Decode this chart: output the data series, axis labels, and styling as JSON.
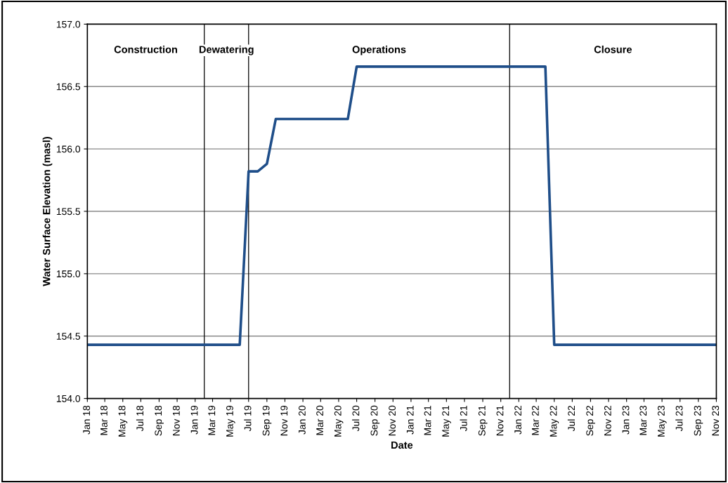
{
  "chart_data": {
    "type": "line",
    "xlabel": "Date",
    "ylabel": "Water Surface Elevation (masl)",
    "x": [
      "2018-01",
      "2019-06",
      "2019-07",
      "2019-08",
      "2019-09",
      "2019-10",
      "2020-06",
      "2020-07",
      "2022-04",
      "2022-05",
      "2023-11"
    ],
    "series": [
      {
        "color": "#1f4e89",
        "values": [
          154.43,
          154.43,
          155.82,
          155.82,
          155.88,
          156.24,
          156.24,
          156.66,
          156.66,
          154.43,
          154.43
        ]
      }
    ],
    "xlim": [
      "2018-01",
      "2023-11"
    ],
    "xticks": [
      {
        "value": "2018-01",
        "label": "Jan 18"
      },
      {
        "value": "2018-03",
        "label": "Mar 18"
      },
      {
        "value": "2018-05",
        "label": "May 18"
      },
      {
        "value": "2018-07",
        "label": "Jul 18"
      },
      {
        "value": "2018-09",
        "label": "Sep 18"
      },
      {
        "value": "2018-11",
        "label": "Nov 18"
      },
      {
        "value": "2019-01",
        "label": "Jan 19"
      },
      {
        "value": "2019-03",
        "label": "Mar 19"
      },
      {
        "value": "2019-05",
        "label": "May 19"
      },
      {
        "value": "2019-07",
        "label": "Jul 19"
      },
      {
        "value": "2019-09",
        "label": "Sep 19"
      },
      {
        "value": "2019-11",
        "label": "Nov 19"
      },
      {
        "value": "2020-01",
        "label": "Jan 20"
      },
      {
        "value": "2020-03",
        "label": "Mar 20"
      },
      {
        "value": "2020-05",
        "label": "May 20"
      },
      {
        "value": "2020-07",
        "label": "Jul 20"
      },
      {
        "value": "2020-09",
        "label": "Sep 20"
      },
      {
        "value": "2020-11",
        "label": "Nov 20"
      },
      {
        "value": "2021-01",
        "label": "Jan 21"
      },
      {
        "value": "2021-03",
        "label": "Mar 21"
      },
      {
        "value": "2021-05",
        "label": "May 21"
      },
      {
        "value": "2021-07",
        "label": "Jul 21"
      },
      {
        "value": "2021-09",
        "label": "Sep 21"
      },
      {
        "value": "2021-11",
        "label": "Nov 21"
      },
      {
        "value": "2022-01",
        "label": "Jan 22"
      },
      {
        "value": "2022-03",
        "label": "Mar 22"
      },
      {
        "value": "2022-05",
        "label": "May 22"
      },
      {
        "value": "2022-07",
        "label": "Jul 22"
      },
      {
        "value": "2022-09",
        "label": "Sep 22"
      },
      {
        "value": "2022-11",
        "label": "Nov 22"
      },
      {
        "value": "2023-01",
        "label": "Jan 23"
      },
      {
        "value": "2023-03",
        "label": "Mar 23"
      },
      {
        "value": "2023-05",
        "label": "May 23"
      },
      {
        "value": "2023-07",
        "label": "Jul 23"
      },
      {
        "value": "2023-09",
        "label": "Sep 23"
      },
      {
        "value": "2023-11",
        "label": "Nov 23"
      }
    ],
    "ylim": [
      154.0,
      157.0
    ],
    "yticks": [
      {
        "value": 154.0,
        "label": "154.0"
      },
      {
        "value": 154.5,
        "label": "154.5"
      },
      {
        "value": 155.0,
        "label": "155.0"
      },
      {
        "value": 155.5,
        "label": "155.5"
      },
      {
        "value": 156.0,
        "label": "156.0"
      },
      {
        "value": 156.5,
        "label": "156.5"
      },
      {
        "value": 157.0,
        "label": "157.0"
      }
    ],
    "grid": "y",
    "marker": "none",
    "line_style": "solid",
    "legend": false,
    "ref_lines": [
      {
        "axis": "x",
        "value": "2019-02",
        "color": "#000000"
      },
      {
        "axis": "x",
        "value": "2019-07",
        "color": "#000000"
      },
      {
        "axis": "x",
        "value": "2021-12",
        "color": "#000000"
      }
    ],
    "annotations": [
      "Construction",
      "Dewatering",
      "Operations",
      "Closure"
    ]
  }
}
